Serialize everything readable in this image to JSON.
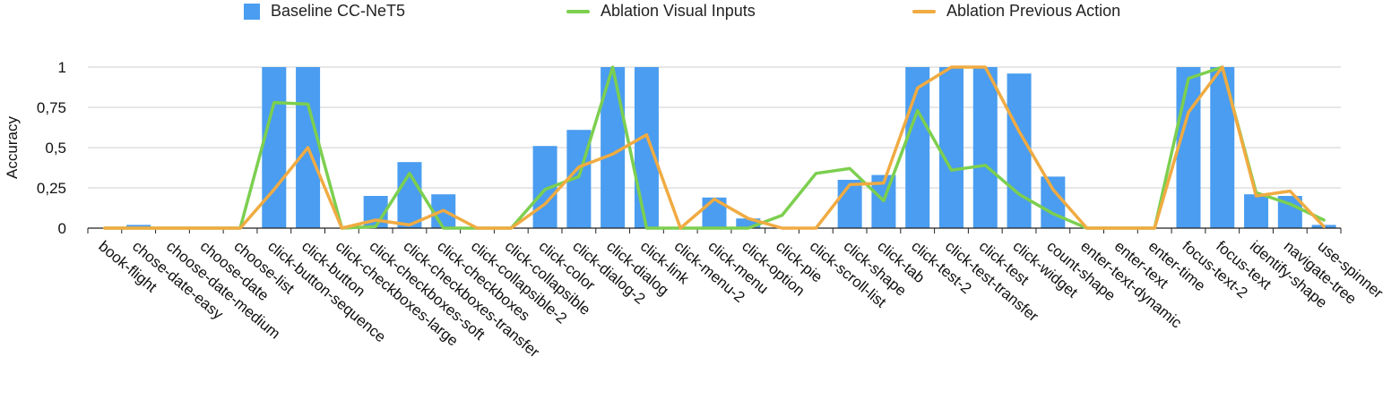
{
  "chart_data": {
    "type": "bar",
    "title": "",
    "xlabel": "",
    "ylabel": "Accuracy",
    "ylim": [
      0,
      1
    ],
    "yticks": [
      {
        "value": 0,
        "label": "0"
      },
      {
        "value": 0.25,
        "label": "0,25"
      },
      {
        "value": 0.5,
        "label": "0,5"
      },
      {
        "value": 0.75,
        "label": "0,75"
      },
      {
        "value": 1,
        "label": "1"
      }
    ],
    "grid": true,
    "legend_position": "top",
    "categories": [
      "book-flight",
      "chose-date-easy",
      "choose-date-medium",
      "choose-date",
      "choose-list",
      "click-button-sequence",
      "click-button",
      "click-checkboxes-large",
      "click-checkboxes-soft",
      "click-checkboxes-transfer",
      "click-checkboxes",
      "click-collapsible-2",
      "click-collapsible",
      "click-color",
      "click-dialog-2",
      "click-dialog",
      "click-link",
      "click-menu-2",
      "click-menu",
      "click-option",
      "click-pie",
      "click-scroll-list",
      "click-shape",
      "click-tab",
      "click-test-2",
      "click-test-transfer",
      "click-test",
      "click-widget",
      "count-shape",
      "enter-text-dynamic",
      "enter-text",
      "enter-time",
      "focus-text-2",
      "focus-text",
      "identify-shape",
      "navigate-tree",
      "use-spinner"
    ],
    "series": [
      {
        "name": "Baseline CC-NeT5",
        "type": "bar",
        "color": "#4a9df0",
        "values": [
          0,
          0.02,
          0,
          0,
          0,
          1,
          1,
          0,
          0.2,
          0.41,
          0.21,
          0,
          0,
          0.51,
          0.61,
          1,
          1,
          0,
          0.19,
          0.06,
          0,
          0,
          0.3,
          0.33,
          1,
          1,
          1,
          0.96,
          0.32,
          0,
          0,
          0,
          1,
          1,
          0.21,
          0.2,
          0.02
        ]
      },
      {
        "name": "Ablation Visual Inputs",
        "type": "line",
        "color": "#7ccf4f",
        "values": [
          0,
          0,
          0,
          0,
          0,
          0.78,
          0.77,
          0,
          0.01,
          0.34,
          0,
          0,
          0,
          0.24,
          0.32,
          1,
          0,
          0,
          0,
          0,
          0.08,
          0.34,
          0.37,
          0.17,
          0.73,
          0.36,
          0.39,
          0.21,
          0.09,
          0,
          0,
          0,
          0.93,
          1,
          0.22,
          0.15,
          0.05
        ]
      },
      {
        "name": "Ablation Previous Action",
        "type": "line",
        "color": "#f0ab42",
        "values": [
          0,
          0,
          0,
          0,
          0,
          0.24,
          0.5,
          0,
          0.05,
          0.02,
          0.11,
          0,
          0,
          0.15,
          0.38,
          0.46,
          0.58,
          0,
          0.18,
          0.06,
          0,
          0,
          0.27,
          0.28,
          0.87,
          1,
          1,
          0.6,
          0.24,
          0,
          0,
          0,
          0.72,
          1,
          0.2,
          0.23,
          0.01
        ]
      }
    ]
  }
}
